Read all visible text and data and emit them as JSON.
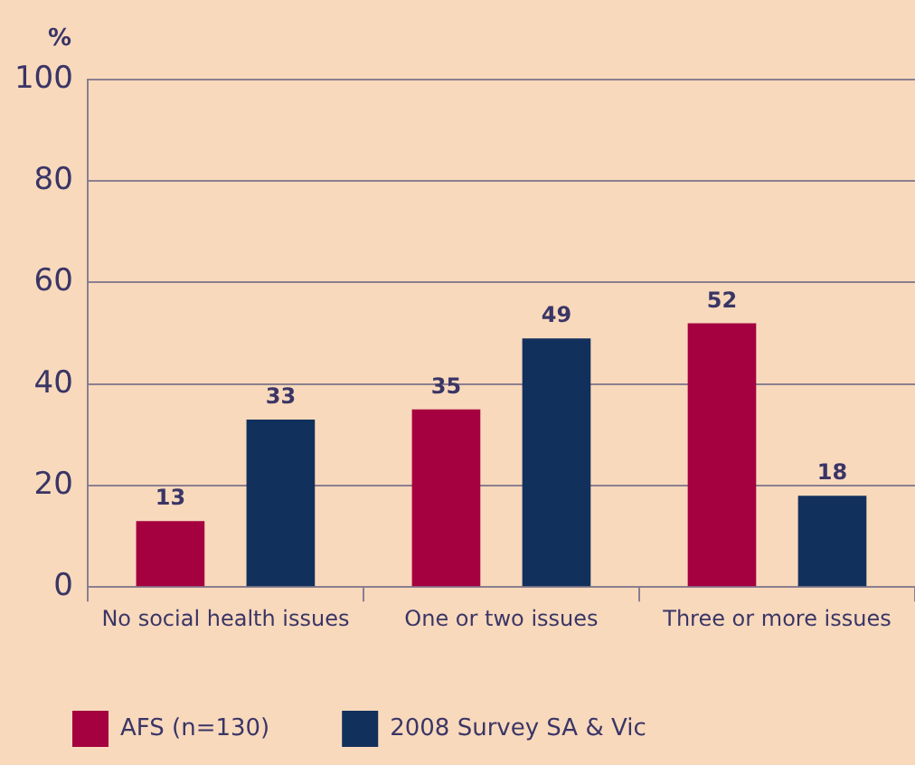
{
  "chart_data": {
    "type": "bar",
    "ylabel": "%",
    "categories": [
      "No social health issues",
      "One or two issues",
      "Three or more issues"
    ],
    "series": [
      {
        "name": "AFS (n=130)",
        "color": "#a5003f",
        "values": [
          13,
          35,
          52
        ]
      },
      {
        "name": "2008 Survey SA & Vic",
        "color": "#12305c",
        "values": [
          33,
          49,
          18
        ]
      }
    ],
    "ylim": [
      0,
      100
    ],
    "yticks": [
      0,
      20,
      40,
      60,
      80,
      100
    ],
    "grid": "y",
    "legend": "bottom",
    "data_labels": true
  }
}
